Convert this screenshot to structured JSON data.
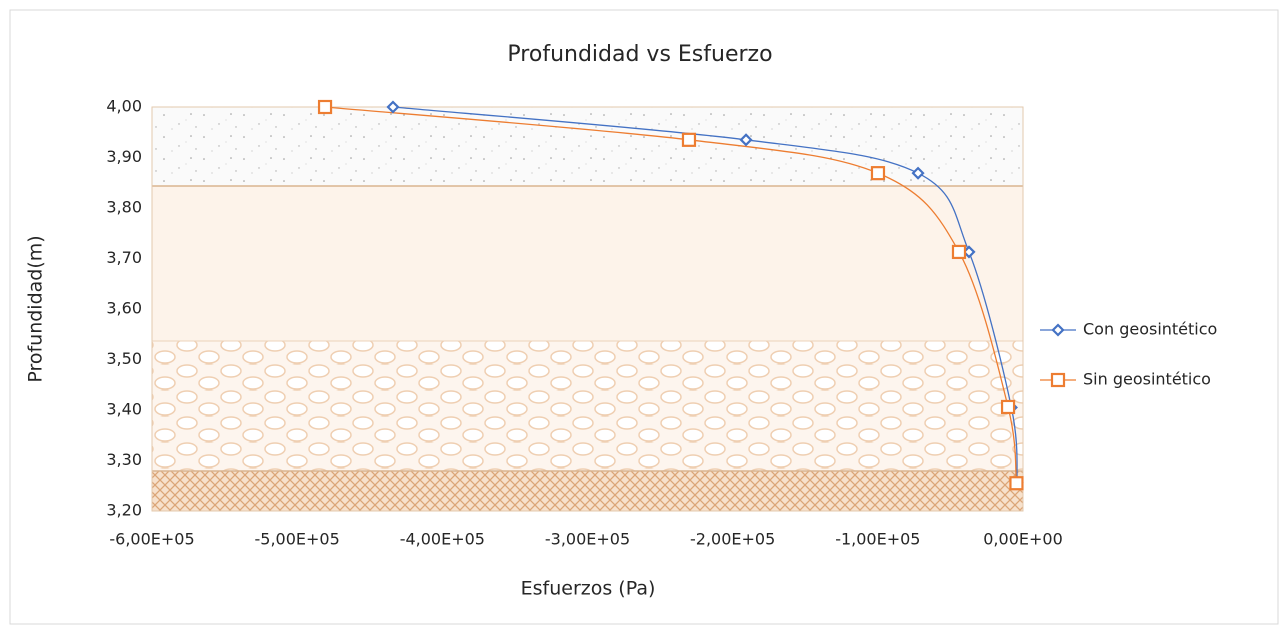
{
  "chart_data": {
    "type": "scatter",
    "title": "Profundidad vs Esfuerzo",
    "x_label": "Esfuerzos (Pa)",
    "y_label": "Profundidad(m)",
    "series": [
      {
        "name": "Con geosintético",
        "color": "#4472c4",
        "marker": "diamond",
        "x": [
          -434000,
          -190800,
          -72300,
          -37200,
          -8000,
          -4000
        ],
        "values": [
          4.0,
          3.935,
          3.869,
          3.713,
          3.405,
          3.256
        ]
      },
      {
        "name": "Sin geosintético",
        "color": "#ed7d31",
        "marker": "square",
        "x": [
          -480800,
          -230100,
          -99900,
          -44100,
          -10300,
          -4500
        ],
        "values": [
          4.0,
          3.935,
          3.869,
          3.713,
          3.406,
          3.255
        ]
      }
    ],
    "xlim": [
      -600000,
      0
    ],
    "xticks": [
      {
        "value": -600000,
        "label": "-6,00E+05"
      },
      {
        "value": -500000,
        "label": "-5,00E+05"
      },
      {
        "value": -400000,
        "label": "-4,00E+05"
      },
      {
        "value": -300000,
        "label": "-3,00E+05"
      },
      {
        "value": -200000,
        "label": "-2,00E+05"
      },
      {
        "value": -100000,
        "label": "-1,00E+05"
      },
      {
        "value": 0,
        "label": "0,00E+00"
      }
    ],
    "ylim": [
      3.2,
      4.0
    ],
    "yticks": [
      {
        "value": 3.2,
        "label": "3,20"
      },
      {
        "value": 3.3,
        "label": "3,30"
      },
      {
        "value": 3.4,
        "label": "3,40"
      },
      {
        "value": 3.5,
        "label": "3,50"
      },
      {
        "value": 3.6,
        "label": "3,60"
      },
      {
        "value": 3.7,
        "label": "3,70"
      },
      {
        "value": 3.8,
        "label": "3,80"
      },
      {
        "value": 3.9,
        "label": "3,90"
      },
      {
        "value": 4.0,
        "label": "4,00"
      }
    ],
    "smooth": true
  }
}
